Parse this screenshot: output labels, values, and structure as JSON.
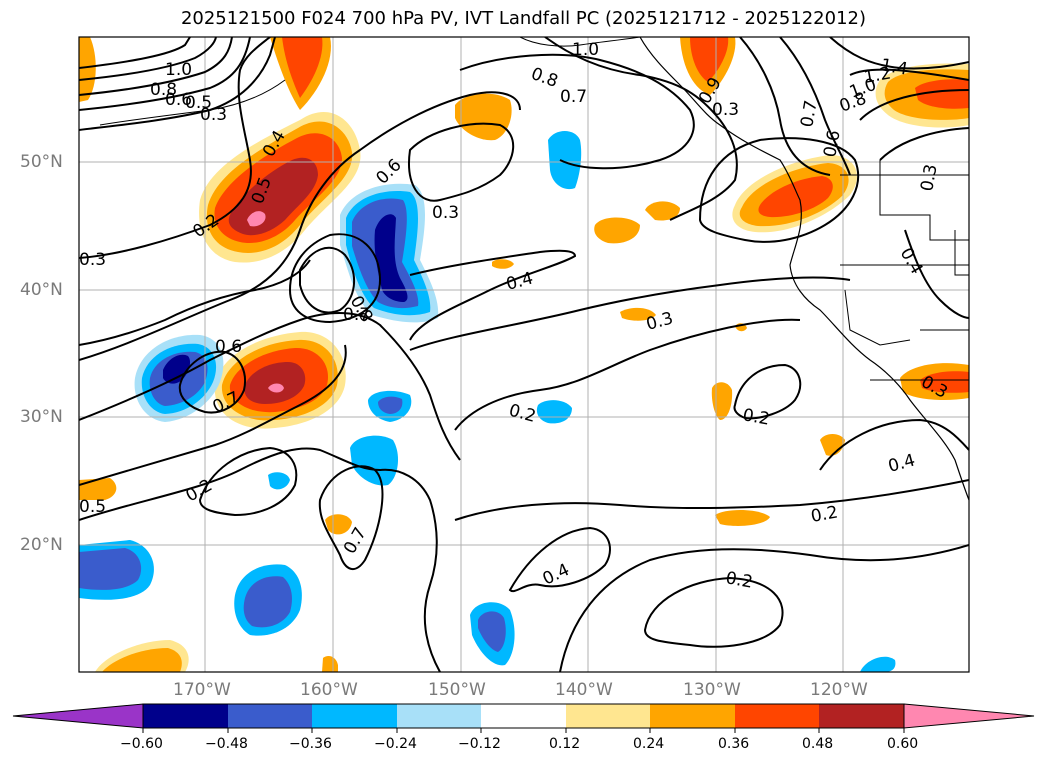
{
  "title": "2025121500 F024 700 hPa PV, IVT Landfall PC (2025121712 - 2025122012)",
  "lat_labels": [
    "50°N",
    "40°N",
    "30°N",
    "20°N"
  ],
  "lon_labels": [
    "170°W",
    "160°W",
    "150°W",
    "140°W",
    "130°W",
    "120°W"
  ],
  "contour_labels": [
    "1.0",
    "0.8",
    "0.6",
    "0.5",
    "0.3",
    "0.4",
    "0.5",
    "0.2",
    "0.3",
    "0.6",
    "0.3",
    "0.8",
    "0.7",
    "0.6",
    "0.7",
    "0.2",
    "0.5",
    "0.4",
    "0.3",
    "0.2",
    "0.2",
    "0.7",
    "0.4",
    "0.2",
    "0.4",
    "0.2",
    "1.0",
    "0.8",
    "0.7",
    "0.9",
    "0.3",
    "0.7",
    "0.6",
    "1.4",
    "1.2",
    "1.0",
    "0.8",
    "0.3",
    "0.4",
    "0.3"
  ],
  "colorbar": {
    "ticks": [
      "−0.60",
      "−0.48",
      "−0.36",
      "−0.24",
      "−0.12",
      "0.12",
      "0.24",
      "0.36",
      "0.48",
      "0.60"
    ],
    "colors": [
      "#9a34c8",
      "#00008b",
      "#3a5ccc",
      "#00b8ff",
      "#a8e0f8",
      "#ffffff",
      "#ffe690",
      "#ffa500",
      "#ff4500",
      "#b22222",
      "#ff87b0"
    ]
  },
  "map_colors": {
    "land_outline": "#000000",
    "grid": "#b0b0b0",
    "pv_contour": "#000000"
  }
}
